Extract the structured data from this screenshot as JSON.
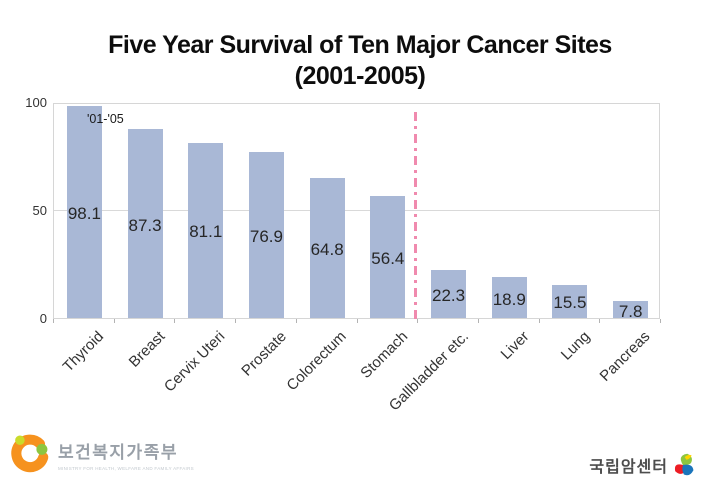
{
  "title": {
    "line1": "Five Year Survival of Ten Major Cancer Sites",
    "line2": "(2001-2005)"
  },
  "legend": {
    "label": "'01-'05"
  },
  "chart_data": {
    "type": "bar",
    "title": "Five Year Survival of Ten Major Cancer Sites (2001-2005)",
    "categories": [
      "Thyroid",
      "Breast",
      "Cervix Uteri",
      "Prostate",
      "Colorectum",
      "Stomach",
      "Gallbladder etc.",
      "Liver",
      "Lung",
      "Pancreas"
    ],
    "values": [
      98.1,
      87.3,
      81.1,
      76.9,
      64.8,
      56.4,
      22.3,
      18.9,
      15.5,
      7.8
    ],
    "series_label": "'01-'05",
    "ylabel": "",
    "xlabel": "",
    "ylim": [
      0,
      100
    ],
    "yticks": [
      0,
      50,
      100
    ],
    "grid": "y-major",
    "legend_position": "inside-top-left",
    "bar_color": "#a9b8d6",
    "value_label_position": "inside-center",
    "divider_line": {
      "between": [
        "Stomach",
        "Gallbladder etc."
      ],
      "style": "dash-dot",
      "color": "#f08aae"
    }
  },
  "colors": {
    "bar": "#a9b8d6",
    "pink_divider": "#f08aae",
    "grid": "#d9d9d9"
  },
  "footer": {
    "left_logo": {
      "text": "보건복지가족부",
      "caption": "MINISTRY FOR HEALTH, WELFARE AND FAMILY AFFAIRS",
      "mark": "mohw-swirl-logo"
    },
    "right_logo": {
      "text": "국립암센터",
      "mark": "ncc-pinwheel-logo"
    }
  }
}
